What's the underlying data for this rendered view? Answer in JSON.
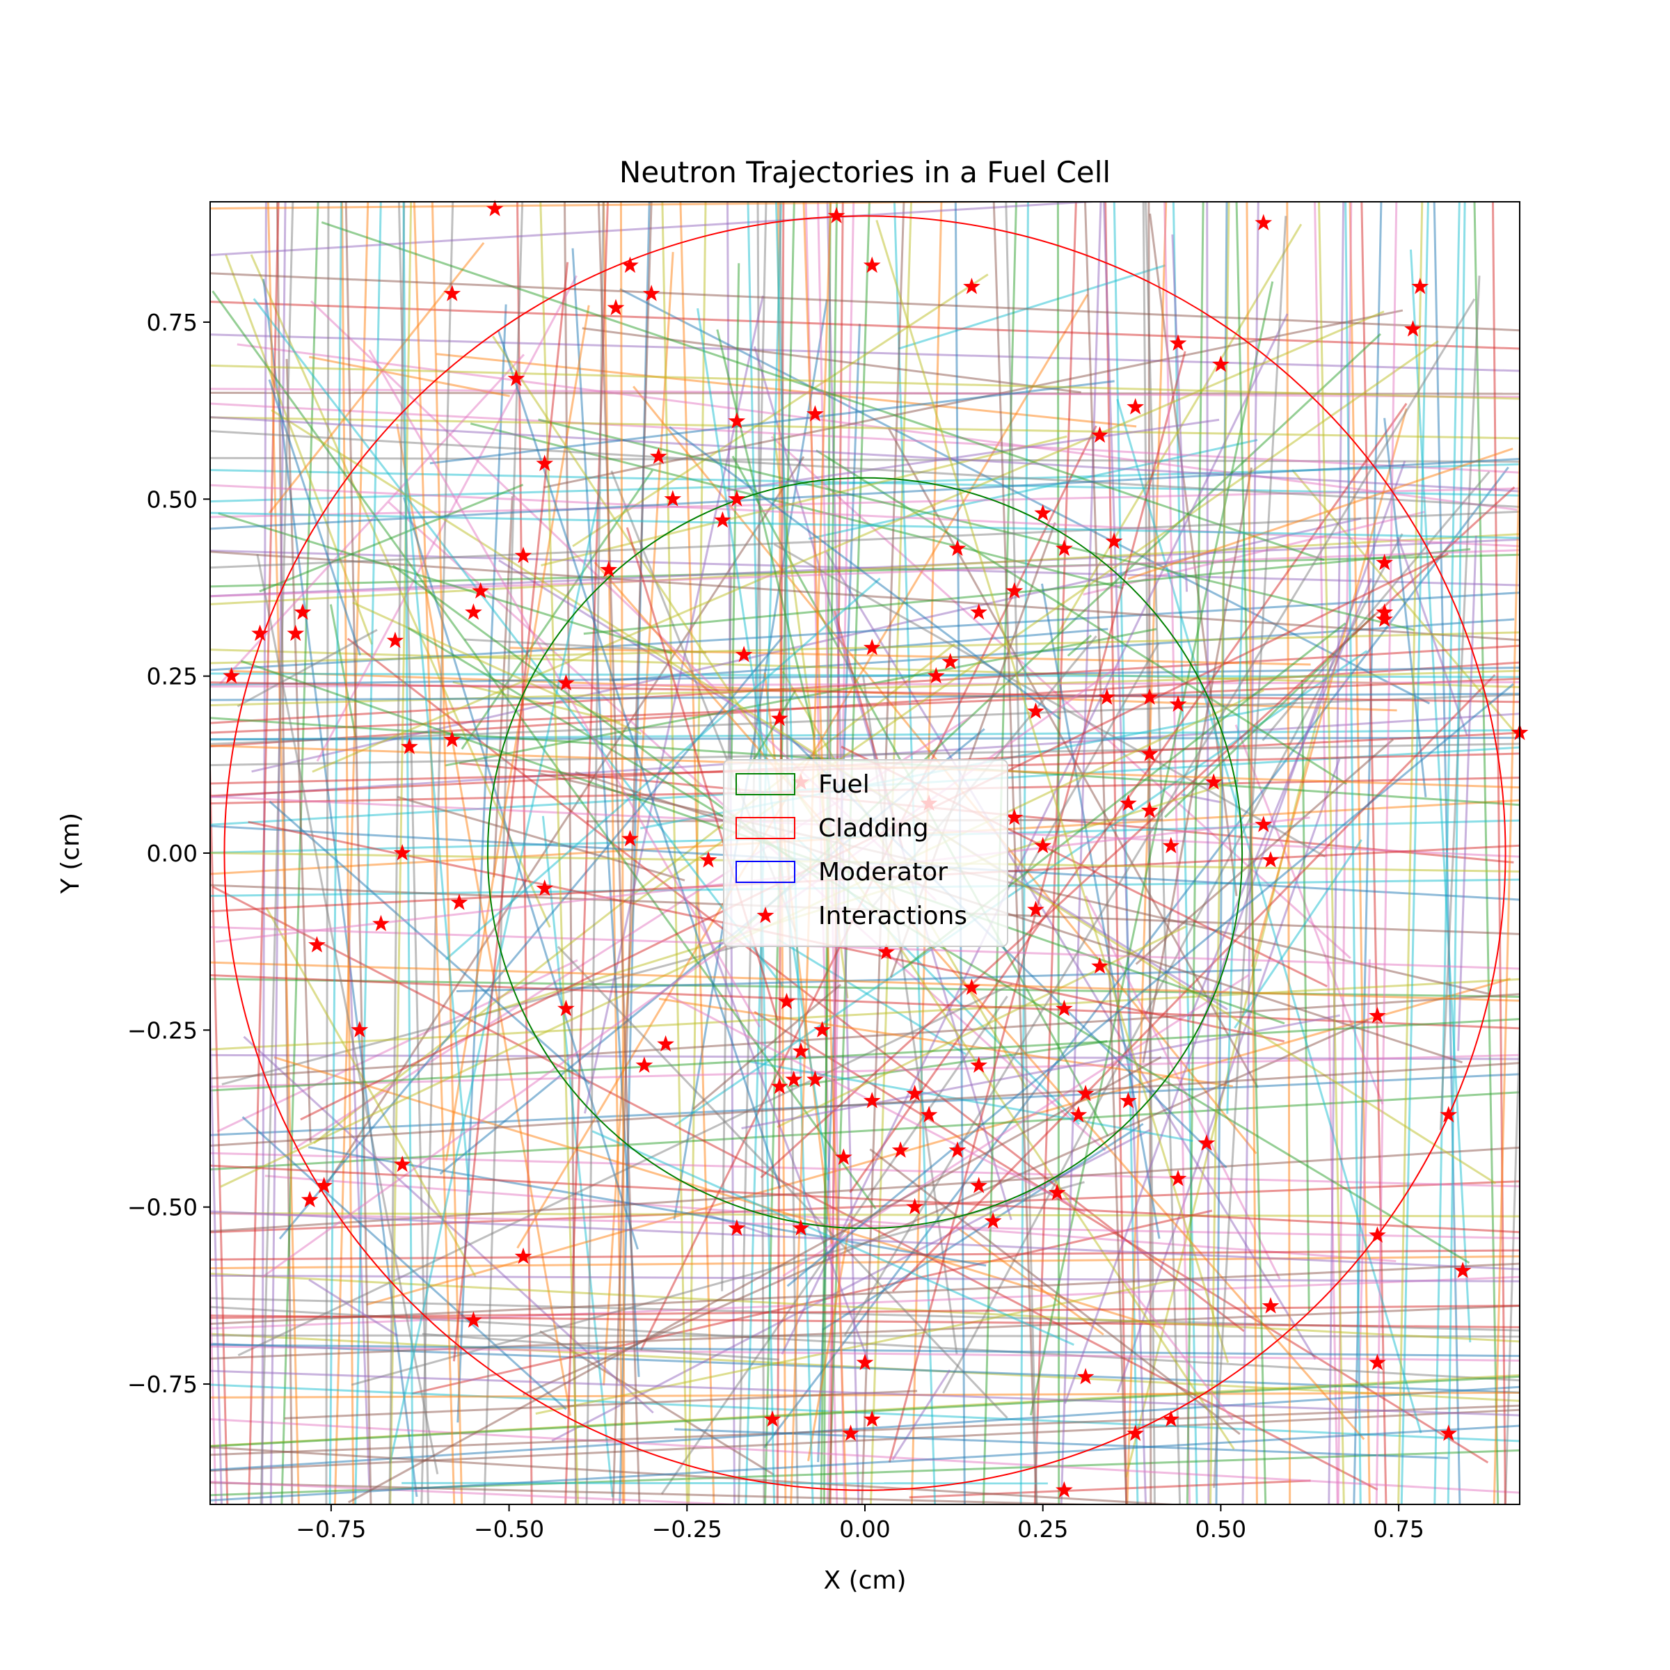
{
  "chart_data": {
    "type": "line",
    "title": "Neutron Trajectories in a Fuel Cell",
    "xlabel": "X (cm)",
    "ylabel": "Y (cm)",
    "xlim": [
      -0.92,
      0.92
    ],
    "ylim": [
      -0.92,
      0.92
    ],
    "xticks": [
      -0.75,
      -0.5,
      -0.25,
      0.0,
      0.25,
      0.5,
      0.75
    ],
    "yticks": [
      -0.75,
      -0.5,
      -0.25,
      0.0,
      0.25,
      0.5,
      0.75
    ],
    "xtick_labels": [
      "−0.75",
      "−0.50",
      "−0.25",
      "0.00",
      "0.25",
      "0.50",
      "0.75"
    ],
    "ytick_labels": [
      "−0.75",
      "−0.50",
      "−0.25",
      "0.00",
      "0.25",
      "0.50",
      "0.75"
    ],
    "grid": false,
    "legend_position": "center",
    "regions": [
      {
        "name": "Fuel",
        "shape": "circle",
        "center": [
          0,
          0
        ],
        "radius": 0.53,
        "color": "#008000"
      },
      {
        "name": "Cladding",
        "shape": "circle",
        "center": [
          0,
          0
        ],
        "radius": 0.9,
        "color": "#ff0000"
      },
      {
        "name": "Moderator",
        "shape": "square",
        "center": [
          0,
          0
        ],
        "half_width": 0.92,
        "color": "#0000ff"
      }
    ],
    "trajectory_colors": [
      "#1f77b4",
      "#ff7f0e",
      "#2ca02c",
      "#d62728",
      "#9467bd",
      "#8c564b",
      "#e377c2",
      "#7f7f7f",
      "#bcbd22",
      "#17becf"
    ],
    "interactions": {
      "name": "Interactions",
      "color": "#ff0000",
      "marker": "star",
      "points": [
        [
          -0.52,
          0.91
        ],
        [
          -0.04,
          0.9
        ],
        [
          0.56,
          0.89
        ],
        [
          0.01,
          0.83
        ],
        [
          -0.33,
          0.83
        ],
        [
          -0.35,
          0.77
        ],
        [
          -0.3,
          0.79
        ],
        [
          -0.58,
          0.79
        ],
        [
          0.15,
          0.8
        ],
        [
          0.78,
          0.8
        ],
        [
          0.77,
          0.74
        ],
        [
          0.44,
          0.72
        ],
        [
          0.5,
          0.69
        ],
        [
          -0.49,
          0.67
        ],
        [
          -0.07,
          0.62
        ],
        [
          0.38,
          0.63
        ],
        [
          -0.18,
          0.61
        ],
        [
          0.33,
          0.59
        ],
        [
          -0.45,
          0.55
        ],
        [
          -0.29,
          0.56
        ],
        [
          -0.27,
          0.5
        ],
        [
          -0.18,
          0.5
        ],
        [
          -0.2,
          0.47
        ],
        [
          0.25,
          0.48
        ],
        [
          -0.48,
          0.42
        ],
        [
          0.13,
          0.43
        ],
        [
          0.28,
          0.43
        ],
        [
          0.35,
          0.44
        ],
        [
          0.73,
          0.41
        ],
        [
          -0.36,
          0.4
        ],
        [
          0.21,
          0.37
        ],
        [
          -0.54,
          0.37
        ],
        [
          -0.55,
          0.34
        ],
        [
          -0.79,
          0.34
        ],
        [
          -0.85,
          0.31
        ],
        [
          -0.8,
          0.31
        ],
        [
          0.16,
          0.34
        ],
        [
          0.73,
          0.34
        ],
        [
          0.73,
          0.33
        ],
        [
          -0.66,
          0.3
        ],
        [
          0.01,
          0.29
        ],
        [
          -0.17,
          0.28
        ],
        [
          0.12,
          0.27
        ],
        [
          0.1,
          0.25
        ],
        [
          -0.89,
          0.25
        ],
        [
          -0.42,
          0.24
        ],
        [
          0.34,
          0.22
        ],
        [
          0.4,
          0.22
        ],
        [
          0.44,
          0.21
        ],
        [
          0.24,
          0.2
        ],
        [
          -0.12,
          0.19
        ],
        [
          -0.58,
          0.16
        ],
        [
          -0.64,
          0.15
        ],
        [
          0.4,
          0.14
        ],
        [
          0.92,
          0.17
        ],
        [
          0.49,
          0.1
        ],
        [
          -0.09,
          0.1
        ],
        [
          0.09,
          0.07
        ],
        [
          0.37,
          0.07
        ],
        [
          0.4,
          0.06
        ],
        [
          0.21,
          0.05
        ],
        [
          0.56,
          0.04
        ],
        [
          -0.33,
          0.02
        ],
        [
          0.43,
          0.01
        ],
        [
          0.25,
          0.01
        ],
        [
          -0.65,
          0.0
        ],
        [
          0.57,
          -0.01
        ],
        [
          -0.22,
          -0.01
        ],
        [
          -0.45,
          -0.05
        ],
        [
          -0.57,
          -0.07
        ],
        [
          0.24,
          -0.08
        ],
        [
          -0.68,
          -0.1
        ],
        [
          -0.77,
          -0.13
        ],
        [
          0.03,
          -0.14
        ],
        [
          0.33,
          -0.16
        ],
        [
          0.15,
          -0.19
        ],
        [
          -0.11,
          -0.21
        ],
        [
          -0.42,
          -0.22
        ],
        [
          0.28,
          -0.22
        ],
        [
          0.72,
          -0.23
        ],
        [
          -0.06,
          -0.25
        ],
        [
          -0.71,
          -0.25
        ],
        [
          -0.28,
          -0.27
        ],
        [
          -0.09,
          -0.28
        ],
        [
          -0.31,
          -0.3
        ],
        [
          0.16,
          -0.3
        ],
        [
          -0.1,
          -0.32
        ],
        [
          -0.07,
          -0.32
        ],
        [
          -0.12,
          -0.33
        ],
        [
          0.31,
          -0.34
        ],
        [
          0.37,
          -0.35
        ],
        [
          0.01,
          -0.35
        ],
        [
          0.07,
          -0.34
        ],
        [
          0.09,
          -0.37
        ],
        [
          0.3,
          -0.37
        ],
        [
          0.82,
          -0.37
        ],
        [
          0.48,
          -0.41
        ],
        [
          0.05,
          -0.42
        ],
        [
          0.13,
          -0.42
        ],
        [
          -0.03,
          -0.43
        ],
        [
          -0.65,
          -0.44
        ],
        [
          0.44,
          -0.46
        ],
        [
          -0.76,
          -0.47
        ],
        [
          0.16,
          -0.47
        ],
        [
          -0.78,
          -0.49
        ],
        [
          0.27,
          -0.48
        ],
        [
          0.07,
          -0.5
        ],
        [
          0.18,
          -0.52
        ],
        [
          -0.18,
          -0.53
        ],
        [
          -0.09,
          -0.53
        ],
        [
          0.72,
          -0.54
        ],
        [
          -0.48,
          -0.57
        ],
        [
          0.84,
          -0.59
        ],
        [
          0.57,
          -0.64
        ],
        [
          -0.55,
          -0.66
        ],
        [
          0.0,
          -0.72
        ],
        [
          0.72,
          -0.72
        ],
        [
          0.31,
          -0.74
        ],
        [
          -0.13,
          -0.8
        ],
        [
          0.01,
          -0.8
        ],
        [
          0.43,
          -0.8
        ],
        [
          0.38,
          -0.82
        ],
        [
          -0.02,
          -0.82
        ],
        [
          0.82,
          -0.82
        ],
        [
          0.28,
          -0.9
        ]
      ]
    }
  },
  "legend": {
    "fuel": "Fuel",
    "cladding": "Cladding",
    "moderator": "Moderator",
    "interactions": "Interactions"
  }
}
